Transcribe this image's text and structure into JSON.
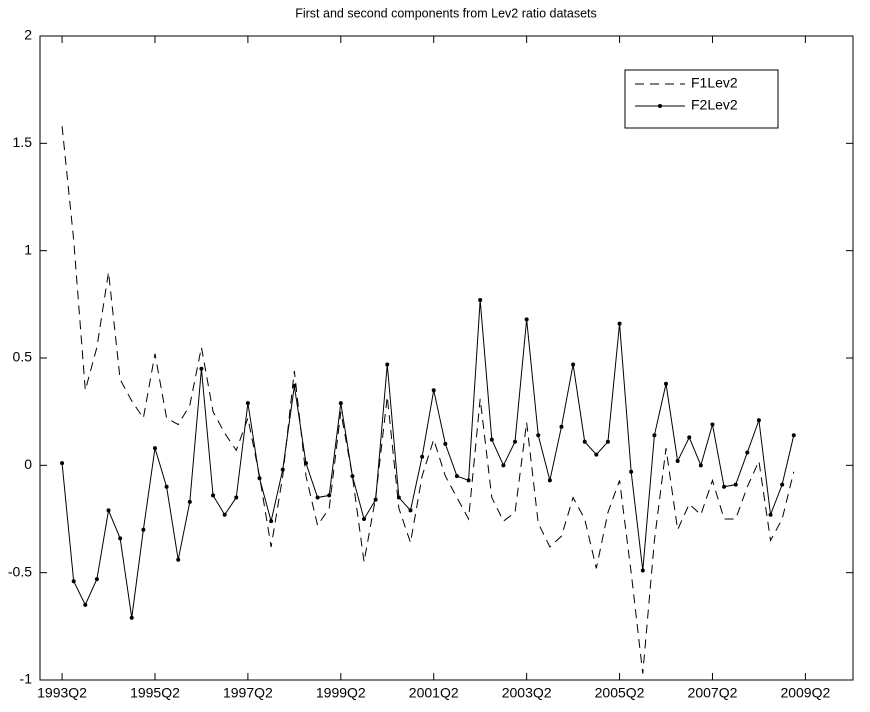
{
  "chart_data": {
    "type": "line",
    "title": "First and second components from Lev2 ratio datasets",
    "categories": [
      "1993Q2",
      null,
      null,
      null,
      null,
      null,
      null,
      null,
      "1995Q2",
      null,
      null,
      null,
      null,
      null,
      null,
      null,
      "1997Q2",
      null,
      null,
      null,
      null,
      null,
      null,
      null,
      "1999Q2",
      null,
      null,
      null,
      null,
      null,
      null,
      null,
      "2001Q2",
      null,
      null,
      null,
      null,
      null,
      null,
      null,
      "2003Q2",
      null,
      null,
      null,
      null,
      null,
      null,
      null,
      "2005Q2",
      null,
      null,
      null,
      null,
      null,
      null,
      null,
      "2007Q2",
      null,
      null,
      null,
      null,
      null,
      null,
      null,
      "2009Q2"
    ],
    "series": [
      {
        "name": "F1Lev2",
        "color": "#000000",
        "linestyle": "--",
        "marker": null,
        "values": [
          1.58,
          1.05,
          0.35,
          0.55,
          0.9,
          0.4,
          0.3,
          0.22,
          0.52,
          0.22,
          0.19,
          0.28,
          0.55,
          0.25,
          0.15,
          0.07,
          0.22,
          -0.05,
          -0.38,
          -0.05,
          0.44,
          -0.05,
          -0.28,
          -0.2,
          0.25,
          -0.05,
          -0.45,
          -0.15,
          0.32,
          -0.2,
          -0.36,
          -0.05,
          0.12,
          -0.05,
          -0.15,
          -0.25,
          0.31,
          -0.15,
          -0.26,
          -0.22,
          0.2,
          -0.27,
          -0.38,
          -0.33,
          -0.15,
          -0.25,
          -0.48,
          -0.22,
          -0.07,
          -0.5,
          -0.97,
          -0.35,
          0.08,
          -0.3,
          -0.18,
          -0.23,
          -0.07,
          -0.25,
          -0.25,
          -0.1,
          0.02,
          -0.35,
          -0.25,
          -0.03,
          null
        ]
      },
      {
        "name": "F2Lev2",
        "color": "#000000",
        "linestyle": "-",
        "marker": ".",
        "values": [
          0.01,
          -0.54,
          -0.65,
          -0.53,
          -0.21,
          -0.34,
          -0.71,
          -0.3,
          0.08,
          -0.1,
          -0.44,
          -0.17,
          0.45,
          -0.14,
          -0.23,
          -0.15,
          0.29,
          -0.06,
          -0.26,
          -0.02,
          0.37,
          0.01,
          -0.15,
          -0.14,
          0.29,
          -0.05,
          -0.25,
          -0.16,
          0.47,
          -0.15,
          -0.21,
          0.04,
          0.35,
          0.1,
          -0.05,
          -0.07,
          0.77,
          0.12,
          0.0,
          0.11,
          0.68,
          0.14,
          -0.07,
          0.18,
          0.47,
          0.11,
          0.05,
          0.11,
          0.66,
          -0.03,
          -0.49,
          0.14,
          0.38,
          0.02,
          0.13,
          0.0,
          0.19,
          -0.1,
          -0.09,
          0.06,
          0.21,
          -0.23,
          -0.09,
          0.14,
          null
        ]
      }
    ],
    "ylim": [
      -1,
      2
    ],
    "yticks": [
      -1,
      -0.5,
      0,
      0.5,
      1,
      1.5,
      2
    ],
    "grid": false,
    "legend": "top-right"
  }
}
